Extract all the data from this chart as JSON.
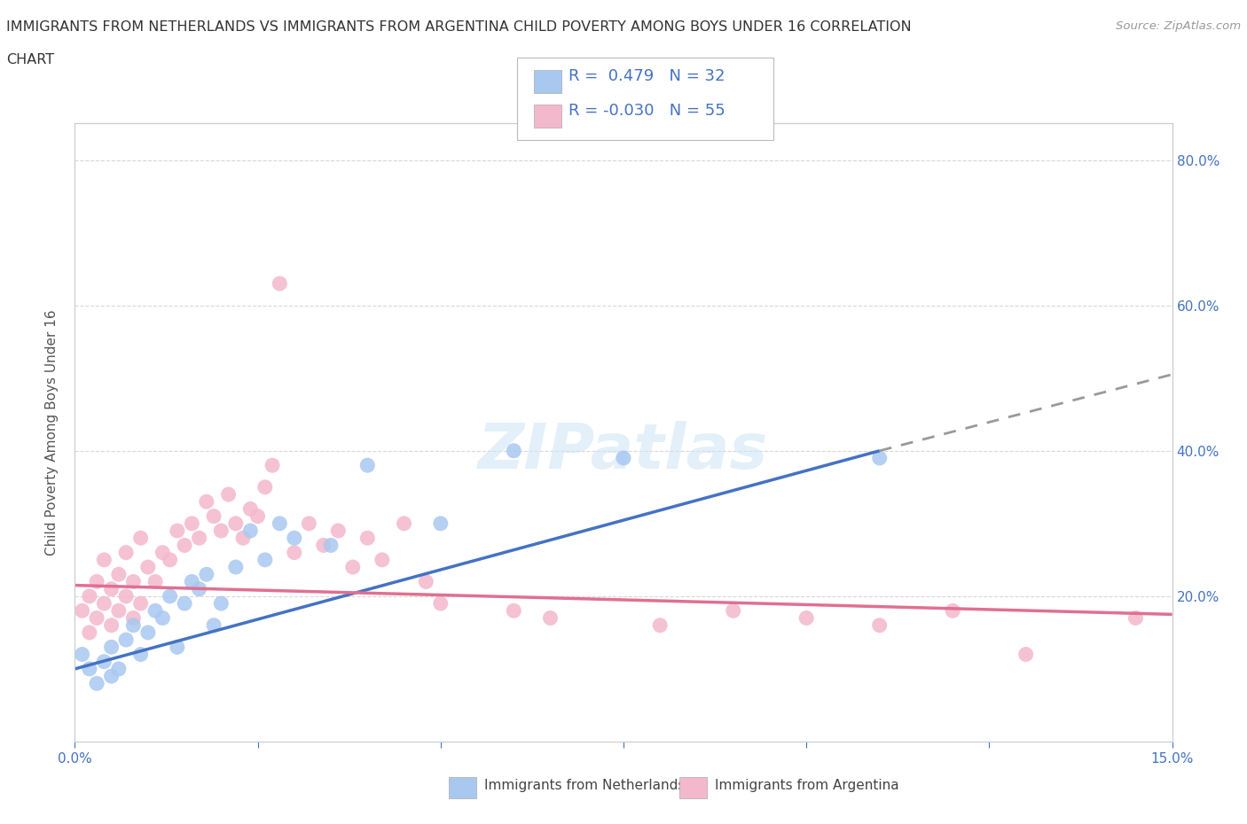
{
  "title_line1": "IMMIGRANTS FROM NETHERLANDS VS IMMIGRANTS FROM ARGENTINA CHILD POVERTY AMONG BOYS UNDER 16 CORRELATION",
  "title_line2": "CHART",
  "source": "Source: ZipAtlas.com",
  "ylabel": "Child Poverty Among Boys Under 16",
  "xlim": [
    0.0,
    0.15
  ],
  "ylim": [
    0.0,
    0.85
  ],
  "netherlands_color": "#a8c8f0",
  "netherlands_line_color": "#4472c4",
  "argentina_color": "#f4b8cc",
  "argentina_line_color": "#e07090",
  "netherlands_R": 0.479,
  "netherlands_N": 32,
  "argentina_R": -0.03,
  "argentina_N": 55,
  "legend_text_color": "#4472c4",
  "watermark": "ZIPatlas",
  "nl_x": [
    0.001,
    0.002,
    0.003,
    0.004,
    0.005,
    0.005,
    0.006,
    0.007,
    0.008,
    0.009,
    0.01,
    0.011,
    0.012,
    0.013,
    0.014,
    0.015,
    0.016,
    0.017,
    0.018,
    0.019,
    0.02,
    0.022,
    0.024,
    0.026,
    0.028,
    0.03,
    0.035,
    0.04,
    0.05,
    0.06,
    0.075,
    0.11
  ],
  "nl_y": [
    0.12,
    0.1,
    0.08,
    0.11,
    0.09,
    0.13,
    0.1,
    0.14,
    0.16,
    0.12,
    0.15,
    0.18,
    0.17,
    0.2,
    0.13,
    0.19,
    0.22,
    0.21,
    0.23,
    0.16,
    0.19,
    0.24,
    0.29,
    0.25,
    0.3,
    0.28,
    0.27,
    0.38,
    0.3,
    0.4,
    0.39,
    0.39
  ],
  "ar_x": [
    0.001,
    0.002,
    0.002,
    0.003,
    0.003,
    0.004,
    0.004,
    0.005,
    0.005,
    0.006,
    0.006,
    0.007,
    0.007,
    0.008,
    0.008,
    0.009,
    0.009,
    0.01,
    0.011,
    0.012,
    0.013,
    0.014,
    0.015,
    0.016,
    0.017,
    0.018,
    0.019,
    0.02,
    0.021,
    0.022,
    0.023,
    0.024,
    0.025,
    0.026,
    0.027,
    0.028,
    0.03,
    0.032,
    0.034,
    0.036,
    0.038,
    0.04,
    0.042,
    0.045,
    0.048,
    0.05,
    0.06,
    0.065,
    0.08,
    0.09,
    0.1,
    0.11,
    0.12,
    0.13,
    0.145
  ],
  "ar_y": [
    0.18,
    0.2,
    0.15,
    0.22,
    0.17,
    0.19,
    0.25,
    0.21,
    0.16,
    0.23,
    0.18,
    0.26,
    0.2,
    0.22,
    0.17,
    0.28,
    0.19,
    0.24,
    0.22,
    0.26,
    0.25,
    0.29,
    0.27,
    0.3,
    0.28,
    0.33,
    0.31,
    0.29,
    0.34,
    0.3,
    0.28,
    0.32,
    0.31,
    0.35,
    0.38,
    0.63,
    0.26,
    0.3,
    0.27,
    0.29,
    0.24,
    0.28,
    0.25,
    0.3,
    0.22,
    0.19,
    0.18,
    0.17,
    0.16,
    0.18,
    0.17,
    0.16,
    0.18,
    0.12,
    0.17
  ],
  "bg_color": "#ffffff",
  "grid_color": "#d8d8d8",
  "tick_color": "#4472c4",
  "nl_trend": [
    0.1,
    0.4
  ],
  "nl_trend_x": [
    0.0,
    0.11
  ],
  "ar_trend": [
    0.215,
    0.175
  ],
  "ar_trend_x": [
    0.0,
    0.15
  ],
  "dash_trend": [
    0.4,
    0.505
  ],
  "dash_trend_x": [
    0.11,
    0.15
  ]
}
